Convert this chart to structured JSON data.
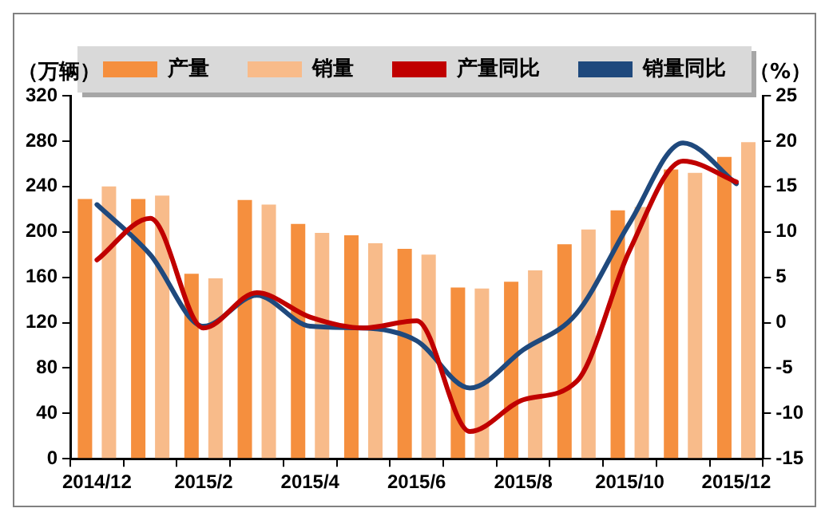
{
  "chart_data": {
    "type": "bar",
    "ylabel": "（万辆）",
    "y2label": "（%）",
    "categories": [
      "2014/12",
      null,
      "2015/2",
      null,
      "2015/4",
      null,
      "2015/6",
      null,
      "2015/8",
      null,
      "2015/10",
      null,
      "2015/12"
    ],
    "series": [
      {
        "name": "产量",
        "color": "#f58f3e",
        "values": [
          229,
          229,
          163,
          228,
          207,
          197,
          185,
          151,
          156,
          189,
          219,
          255,
          266
        ]
      },
      {
        "name": "销量",
        "color": "#f8bb8a",
        "values": [
          240,
          232,
          159,
          224,
          199,
          190,
          180,
          150,
          166,
          202,
          222,
          252,
          279
        ]
      },
      {
        "name": "产量同比",
        "type": "line",
        "axis": "y2",
        "color": "#c00000",
        "values": [
          6.9,
          11.5,
          -0.6,
          3.3,
          0.6,
          -0.6,
          0.2,
          -12,
          -8.5,
          -6.5,
          8,
          17.8,
          15.5
        ]
      },
      {
        "name": "销量同比",
        "type": "line",
        "axis": "y2",
        "color": "#1f497d",
        "values": [
          13,
          7.5,
          -0.4,
          3,
          -0.4,
          -0.6,
          -2,
          -7.2,
          -3,
          1,
          11,
          19.8,
          15.3
        ]
      }
    ],
    "ylim": [
      0,
      320
    ],
    "yticks": [
      0,
      40,
      80,
      120,
      160,
      200,
      240,
      280,
      320
    ],
    "y2lim": [
      -15,
      25
    ],
    "y2ticks": [
      -15,
      -10,
      -5,
      0,
      5,
      10,
      15,
      20,
      25
    ],
    "grid": false,
    "legend": "top",
    "marker": "none",
    "line_style": "solid"
  }
}
